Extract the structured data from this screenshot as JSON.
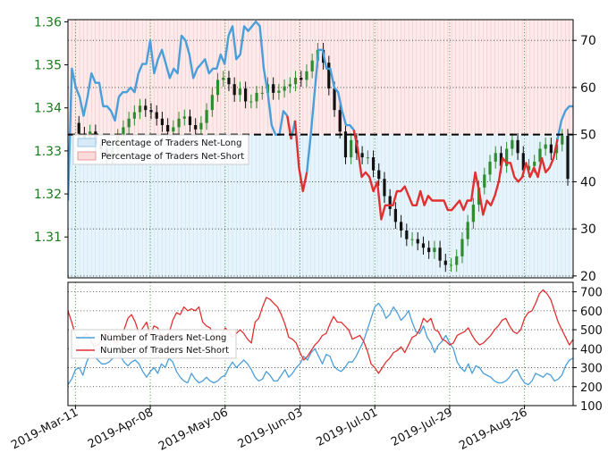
{
  "chart_data": [
    {
      "type": "line",
      "subtype": "candlestick-with-sentiment-overlay",
      "left_axis": {
        "ticks": [
          "1.36",
          "1.35",
          "1.34",
          "1.33",
          "1.32",
          "1.31"
        ],
        "tick_values": [
          1.36,
          1.35,
          1.34,
          1.33,
          1.32,
          1.31
        ],
        "range": [
          1.3005,
          1.3605
        ],
        "color": "#1a7a1a"
      },
      "right_axis": {
        "ticks": [
          "70",
          "60",
          "50",
          "40",
          "30",
          "20"
        ],
        "tick_values": [
          70,
          60,
          50,
          40,
          30,
          20
        ],
        "range": [
          19.6,
          74.4
        ]
      },
      "reference_line": 50,
      "grid": true,
      "legend": {
        "placement": "left-middle",
        "entries": [
          {
            "name": "Percentage of Traders Net-Long",
            "color": "#bfe0f5"
          },
          {
            "name": "Percentage of Traders Net-Short",
            "color": "#f5b3b3"
          }
        ]
      },
      "price_ohlc_approx": [
        1.3365,
        1.334,
        1.3325,
        1.3345,
        1.3315,
        1.3305,
        1.3285,
        1.3305,
        1.3335,
        1.3355,
        1.3375,
        1.339,
        1.3405,
        1.3395,
        1.339,
        1.3375,
        1.336,
        1.3345,
        1.3355,
        1.3375,
        1.338,
        1.336,
        1.335,
        1.3365,
        1.3395,
        1.343,
        1.3465,
        1.347,
        1.3455,
        1.343,
        1.3445,
        1.3415,
        1.3415,
        1.3435,
        1.3435,
        1.3455,
        1.3435,
        1.344,
        1.345,
        1.3455,
        1.347,
        1.3465,
        1.3485,
        1.351,
        1.3535,
        1.3505,
        1.3445,
        1.3395,
        1.3345,
        1.3285,
        1.3325,
        1.3295,
        1.3285,
        1.3285,
        1.3255,
        1.3235,
        1.3195,
        1.3165,
        1.3135,
        1.3115,
        1.3095,
        1.3095,
        1.3085,
        1.3075,
        1.3065,
        1.3075,
        1.3045,
        1.3035,
        1.3035,
        1.3055,
        1.3095,
        1.3135,
        1.3175,
        1.3215,
        1.3245,
        1.3275,
        1.3295,
        1.3265,
        1.3305,
        1.3325,
        1.3295,
        1.3255,
        1.3265,
        1.3275,
        1.3305,
        1.3315,
        1.3295,
        1.3315,
        1.3335,
        1.3235
      ],
      "net_long_pct": [
        36,
        64,
        60,
        58,
        54,
        58,
        63,
        61,
        61,
        56,
        56,
        55,
        53,
        58,
        59,
        59,
        60,
        59,
        63,
        65,
        65,
        70,
        63,
        66,
        68,
        65,
        62,
        64,
        63,
        71,
        70,
        67,
        62,
        64,
        65,
        66,
        63,
        64,
        64,
        67,
        65,
        71,
        73,
        66,
        67,
        73,
        72,
        73,
        74,
        73,
        64,
        59,
        52,
        50,
        50,
        55,
        54,
        49,
        53,
        43,
        38,
        42,
        50,
        59,
        68,
        68,
        64,
        64,
        60,
        59,
        55,
        52,
        52,
        51,
        47,
        41,
        42,
        41,
        38,
        40,
        32,
        35,
        35,
        35,
        38,
        38,
        39,
        37,
        35,
        35,
        38,
        35,
        37,
        36,
        36,
        36,
        36,
        34,
        34,
        35,
        36,
        34,
        36,
        36,
        42,
        38,
        33,
        36,
        35,
        37,
        40,
        45,
        44,
        44,
        41,
        40,
        41,
        44,
        41,
        43,
        41,
        45,
        42,
        43,
        45,
        49,
        53,
        55,
        56,
        56
      ],
      "bottom_axis": {
        "ticks": [
          "700",
          "600",
          "500",
          "400",
          "300",
          "200",
          "100"
        ],
        "tick_values": [
          700,
          600,
          500,
          400,
          300,
          200,
          100
        ],
        "range": [
          100,
          750
        ]
      },
      "bottom_legend": {
        "placement": "left-middle",
        "entries": [
          {
            "name": "Number of Traders Net-Long",
            "color": "#4a9ed9"
          },
          {
            "name": "Number of Traders Net-Short",
            "color": "#e03030"
          }
        ]
      },
      "traders_long": [
        210,
        240,
        290,
        300,
        260,
        330,
        370,
        360,
        340,
        320,
        320,
        330,
        350,
        390,
        360,
        330,
        310,
        330,
        340,
        320,
        280,
        250,
        280,
        300,
        270,
        320,
        300,
        350,
        330,
        280,
        250,
        230,
        220,
        270,
        240,
        220,
        230,
        250,
        230,
        220,
        230,
        250,
        260,
        300,
        330,
        300,
        320,
        340,
        320,
        290,
        250,
        230,
        240,
        280,
        260,
        230,
        230,
        260,
        290,
        250,
        270,
        300,
        320,
        360,
        340,
        380,
        400,
        360,
        320,
        370,
        360,
        310,
        290,
        280,
        300,
        330,
        330,
        360,
        400,
        440,
        500,
        560,
        620,
        640,
        610,
        560,
        580,
        620,
        590,
        550,
        570,
        600,
        540,
        490,
        480,
        520,
        460,
        430,
        380,
        420,
        440,
        470,
        430,
        400,
        330,
        300,
        280,
        320,
        270,
        310,
        300,
        270,
        260,
        250,
        230,
        220,
        220,
        230,
        250,
        280,
        290,
        250,
        220,
        210,
        230,
        270,
        260,
        250,
        270,
        260,
        230,
        240,
        260,
        310,
        340,
        350
      ],
      "traders_short": [
        600,
        540,
        470,
        450,
        460,
        480,
        450,
        410,
        420,
        440,
        490,
        480,
        440,
        430,
        460,
        500,
        560,
        580,
        540,
        480,
        510,
        540,
        470,
        520,
        510,
        470,
        470,
        480,
        550,
        590,
        580,
        620,
        600,
        610,
        600,
        620,
        540,
        520,
        510,
        470,
        450,
        470,
        510,
        490,
        460,
        480,
        500,
        480,
        450,
        430,
        540,
        560,
        620,
        670,
        660,
        640,
        620,
        580,
        530,
        460,
        450,
        430,
        380,
        340,
        360,
        390,
        420,
        440,
        470,
        480,
        530,
        570,
        540,
        540,
        520,
        500,
        450,
        460,
        470,
        440,
        390,
        320,
        300,
        270,
        300,
        330,
        350,
        380,
        390,
        410,
        380,
        420,
        460,
        470,
        500,
        560,
        540,
        560,
        500,
        490,
        450,
        440,
        420,
        430,
        470,
        480,
        490,
        510,
        470,
        440,
        420,
        430,
        450,
        470,
        500,
        520,
        550,
        560,
        520,
        490,
        480,
        500,
        560,
        590,
        600,
        640,
        690,
        710,
        690,
        660,
        600,
        540,
        500,
        460,
        420,
        450
      ],
      "x_ticks": [
        "2019-Mar-11",
        "2019-Apr-08",
        "2019-May-06",
        "2019-Jun-03",
        "2019-Jul-01",
        "2019-Jul-29",
        "2019-Aug-26"
      ]
    }
  ],
  "colors": {
    "price_up": "#2e8b2e",
    "price_down": "#111111",
    "long_line": "#4a9ed9",
    "short_line": "#e03030",
    "long_fill": "#d6ebf7",
    "short_fill": "#fbdada",
    "grid": "#2c8a2c",
    "reference": "#000000"
  }
}
